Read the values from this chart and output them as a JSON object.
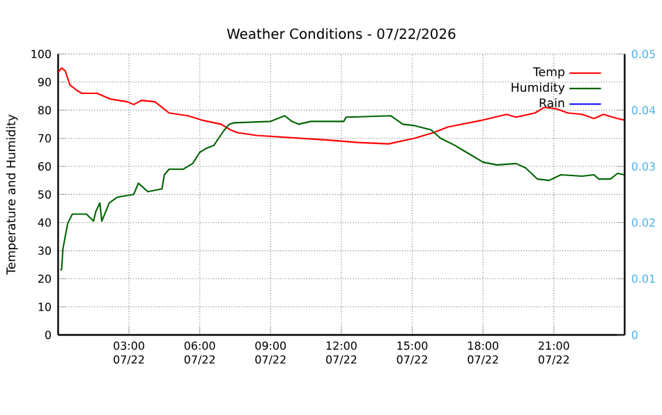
{
  "chart_data": {
    "type": "line",
    "title": "Weather Conditions - 07/22/2026",
    "ylabel": "Temperature and Humidity",
    "xlim": [
      "2026-07-22T00:00",
      "2026-07-23T00:00"
    ],
    "ylim": [
      0,
      100
    ],
    "y2lim": [
      0,
      0.05
    ],
    "xticks": [
      {
        "value": "2026-07-22T03:00",
        "label": "03:00 07/22"
      },
      {
        "value": "2026-07-22T06:00",
        "label": "06:00 07/22"
      },
      {
        "value": "2026-07-22T09:00",
        "label": "09:00 07/22"
      },
      {
        "value": "2026-07-22T12:00",
        "label": "12:00 07/22"
      },
      {
        "value": "2026-07-22T15:00",
        "label": "15:00 07/22"
      },
      {
        "value": "2026-07-22T18:00",
        "label": "18:00 07/22"
      },
      {
        "value": "2026-07-22T21:00",
        "label": "21:00 07/22"
      }
    ],
    "yticks": [
      0,
      10,
      20,
      30,
      40,
      50,
      60,
      70,
      80,
      90,
      100
    ],
    "y2ticks": [
      0,
      0.01,
      0.02,
      0.03,
      0.04,
      0.05
    ],
    "grid": true,
    "legend": "top right",
    "marker": "none",
    "line_style": "solid",
    "series": [
      {
        "name": "Temp",
        "color": "#ff0000",
        "x": [
          "2026-07-22T00:00",
          "2026-07-22T00:09",
          "2026-07-22T00:18",
          "2026-07-22T00:30",
          "2026-07-22T00:48",
          "2026-07-22T01:00",
          "2026-07-22T01:39",
          "2026-07-22T02:12",
          "2026-07-22T02:56",
          "2026-07-22T03:12",
          "2026-07-22T03:32",
          "2026-07-22T04:06",
          "2026-07-22T04:24",
          "2026-07-22T04:42",
          "2026-07-22T05:30",
          "2026-07-22T06:04",
          "2026-07-22T06:54",
          "2026-07-22T07:18",
          "2026-07-22T07:36",
          "2026-07-22T08:24",
          "2026-07-22T11:12",
          "2026-07-22T12:00",
          "2026-07-22T12:42",
          "2026-07-22T14:00",
          "2026-07-22T15:06",
          "2026-07-22T15:54",
          "2026-07-22T16:30",
          "2026-07-22T18:00",
          "2026-07-22T19:00",
          "2026-07-22T19:24",
          "2026-07-22T20:12",
          "2026-07-22T20:36",
          "2026-07-22T21:06",
          "2026-07-22T21:36",
          "2026-07-22T22:12",
          "2026-07-22T22:42",
          "2026-07-22T23:06",
          "2026-07-22T23:42",
          "2026-07-22T23:59"
        ],
        "values": [
          93.5,
          95,
          94,
          89,
          87,
          86,
          86,
          84,
          83,
          82,
          83.5,
          83,
          81,
          79,
          78,
          76.5,
          75,
          73,
          72,
          71,
          69.5,
          69,
          68.5,
          68,
          70,
          72,
          74,
          76.5,
          78.5,
          77.5,
          79,
          81,
          80.5,
          79,
          78.5,
          77,
          78.5,
          77,
          76.5
        ]
      },
      {
        "name": "Humidity",
        "color": "#006400",
        "x": [
          "2026-07-22T00:06",
          "2026-07-22T00:09",
          "2026-07-22T00:12",
          "2026-07-22T00:24",
          "2026-07-22T00:36",
          "2026-07-22T01:12",
          "2026-07-22T01:30",
          "2026-07-22T01:36",
          "2026-07-22T01:46",
          "2026-07-22T01:51",
          "2026-07-22T02:10",
          "2026-07-22T02:30",
          "2026-07-22T03:12",
          "2026-07-22T03:24",
          "2026-07-22T03:48",
          "2026-07-22T04:24",
          "2026-07-22T04:30",
          "2026-07-22T04:42",
          "2026-07-22T05:18",
          "2026-07-22T05:42",
          "2026-07-22T06:00",
          "2026-07-22T06:18",
          "2026-07-22T06:36",
          "2026-07-22T07:00",
          "2026-07-22T07:15",
          "2026-07-22T07:27",
          "2026-07-22T09:00",
          "2026-07-22T09:36",
          "2026-07-22T09:54",
          "2026-07-22T10:12",
          "2026-07-22T10:42",
          "2026-07-22T12:06",
          "2026-07-22T12:12",
          "2026-07-22T14:06",
          "2026-07-22T14:36",
          "2026-07-22T15:06",
          "2026-07-22T15:48",
          "2026-07-22T16:12",
          "2026-07-22T16:48",
          "2026-07-22T17:12",
          "2026-07-22T18:00",
          "2026-07-22T18:36",
          "2026-07-22T19:24",
          "2026-07-22T19:48",
          "2026-07-22T20:18",
          "2026-07-22T20:48",
          "2026-07-22T21:18",
          "2026-07-22T22:12",
          "2026-07-22T22:42",
          "2026-07-22T22:54",
          "2026-07-22T23:24",
          "2026-07-22T23:42",
          "2026-07-22T23:59"
        ],
        "values": [
          23,
          23.5,
          30.5,
          39.5,
          43,
          43,
          40.5,
          44,
          47,
          40.5,
          47,
          49,
          50,
          54,
          51,
          52,
          57,
          59,
          59,
          61,
          65,
          66.5,
          67.5,
          72.5,
          75,
          75.5,
          76,
          78,
          76,
          75,
          76,
          76,
          77.5,
          78,
          75,
          74.5,
          73,
          70,
          67.5,
          65.5,
          61.5,
          60.5,
          61,
          59.5,
          55.5,
          55,
          57,
          56.5,
          57,
          55.5,
          55.5,
          57.5,
          57
        ]
      },
      {
        "name": "Rain",
        "color": "#0000ff",
        "axis": "y2"
      }
    ]
  }
}
